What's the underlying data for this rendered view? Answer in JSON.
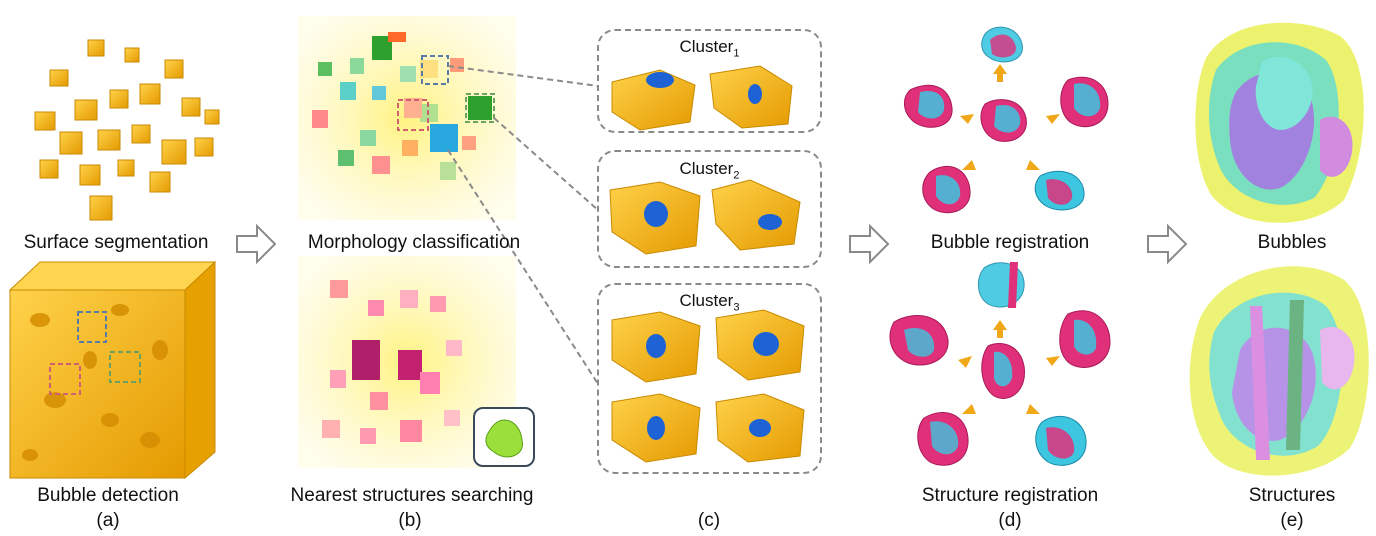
{
  "panels": {
    "a": {
      "top_label": "Surface segmentation",
      "bottom_label": "Bubble detection",
      "sub": "(a)"
    },
    "b": {
      "top_label": "Morphology classification",
      "bottom_label": "Nearest structures searching",
      "sub": "(b)"
    },
    "c": {
      "sub": "(c)",
      "clusters": [
        {
          "name": "Cluster",
          "index": "1"
        },
        {
          "name": "Cluster",
          "index": "2"
        },
        {
          "name": "Cluster",
          "index": "3"
        }
      ]
    },
    "d": {
      "top_label": "Bubble registration",
      "bottom_label": "Structure registration",
      "sub": "(d)"
    },
    "e": {
      "top_label": "Bubbles",
      "bottom_label": "Structures",
      "sub": "(e)"
    }
  },
  "colors": {
    "gold": "#f2b20c",
    "yellow_glow": "#fff27a",
    "blue": "#1e63d6",
    "cyan": "#3cc6e0",
    "magenta": "#e0307a",
    "green": "#7ad22e",
    "arrow": "#f0a818"
  }
}
